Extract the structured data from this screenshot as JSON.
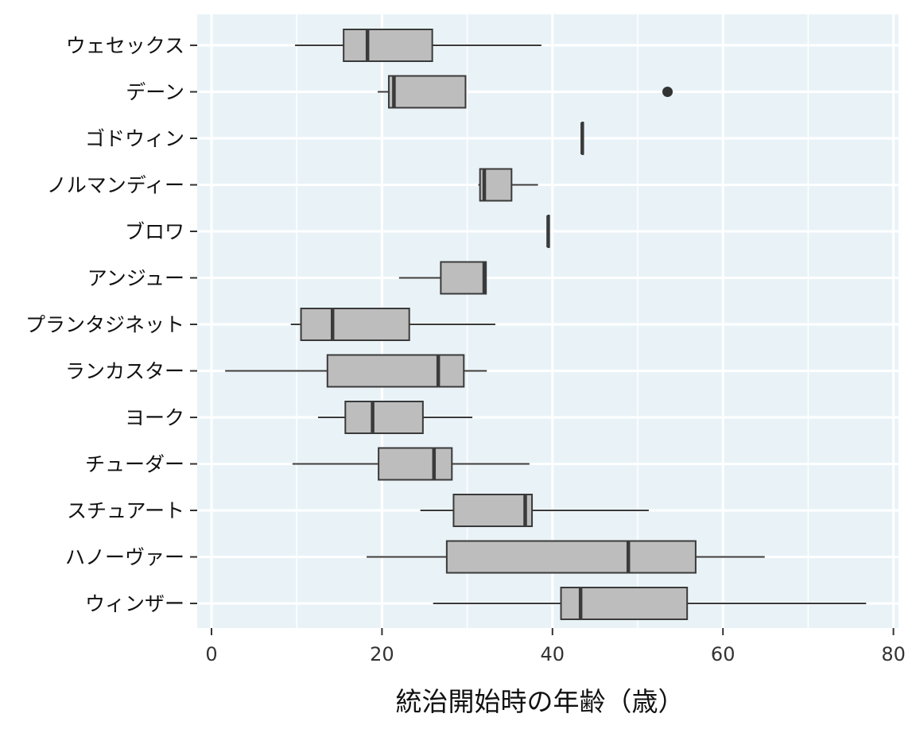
{
  "chart_data": {
    "type": "boxplot",
    "orientation": "horizontal",
    "xlabel": "統治開始時の年齢（歳）",
    "ylabel": "",
    "xlim": [
      -2,
      80.5
    ],
    "xticks": [
      0,
      20,
      40,
      60,
      80
    ],
    "xtick_labels": [
      "0",
      "20",
      "40",
      "60",
      "80"
    ],
    "grid": true,
    "categories": [
      "ウェセックス",
      "デーン",
      "ゴドウィン",
      "ノルマンディー",
      "ブロワ",
      "アンジュー",
      "プランタジネット",
      "ランカスター",
      "ヨーク",
      "チューダー",
      "スチュアート",
      "ハノーヴァー",
      "ウィンザー"
    ],
    "boxes": [
      {
        "whisker_low": 9.8,
        "q1": 15.5,
        "median": 18.3,
        "q3": 25.9,
        "whisker_high": 38.7,
        "outliers": []
      },
      {
        "whisker_low": 19.5,
        "q1": 20.8,
        "median": 21.4,
        "q3": 29.8,
        "whisker_high": 29.8,
        "outliers": [
          53.5
        ]
      },
      {
        "whisker_low": 43.5,
        "q1": 43.5,
        "median": 43.5,
        "q3": 43.5,
        "whisker_high": 43.5,
        "outliers": []
      },
      {
        "whisker_low": 31.3,
        "q1": 31.5,
        "median": 32.0,
        "q3": 35.2,
        "whisker_high": 38.3,
        "outliers": []
      },
      {
        "whisker_low": 39.5,
        "q1": 39.5,
        "median": 39.5,
        "q3": 39.5,
        "whisker_high": 39.5,
        "outliers": []
      },
      {
        "whisker_low": 22.0,
        "q1": 26.9,
        "median": 32.0,
        "q3": 32.2,
        "whisker_high": 32.2,
        "outliers": []
      },
      {
        "whisker_low": 9.3,
        "q1": 10.5,
        "median": 14.2,
        "q3": 23.2,
        "whisker_high": 33.3,
        "outliers": []
      },
      {
        "whisker_low": 1.6,
        "q1": 13.6,
        "median": 26.6,
        "q3": 29.6,
        "whisker_high": 32.3,
        "outliers": []
      },
      {
        "whisker_low": 12.5,
        "q1": 15.7,
        "median": 18.9,
        "q3": 24.8,
        "whisker_high": 30.6,
        "outliers": []
      },
      {
        "whisker_low": 9.5,
        "q1": 19.6,
        "median": 26.1,
        "q3": 28.2,
        "whisker_high": 37.3,
        "outliers": []
      },
      {
        "whisker_low": 24.5,
        "q1": 28.4,
        "median": 36.8,
        "q3": 37.6,
        "whisker_high": 51.3,
        "outliers": []
      },
      {
        "whisker_low": 18.2,
        "q1": 27.6,
        "median": 48.9,
        "q3": 56.8,
        "whisker_high": 64.9,
        "outliers": []
      },
      {
        "whisker_low": 26.0,
        "q1": 41.0,
        "median": 43.3,
        "q3": 55.8,
        "whisker_high": 76.8,
        "outliers": []
      }
    ]
  },
  "colors": {
    "panel_bg": "#e9f3f7",
    "grid": "#ffffff",
    "box_fill": "#bdbdbd",
    "box_stroke": "#3a3a3a",
    "outlier": "#333333"
  }
}
